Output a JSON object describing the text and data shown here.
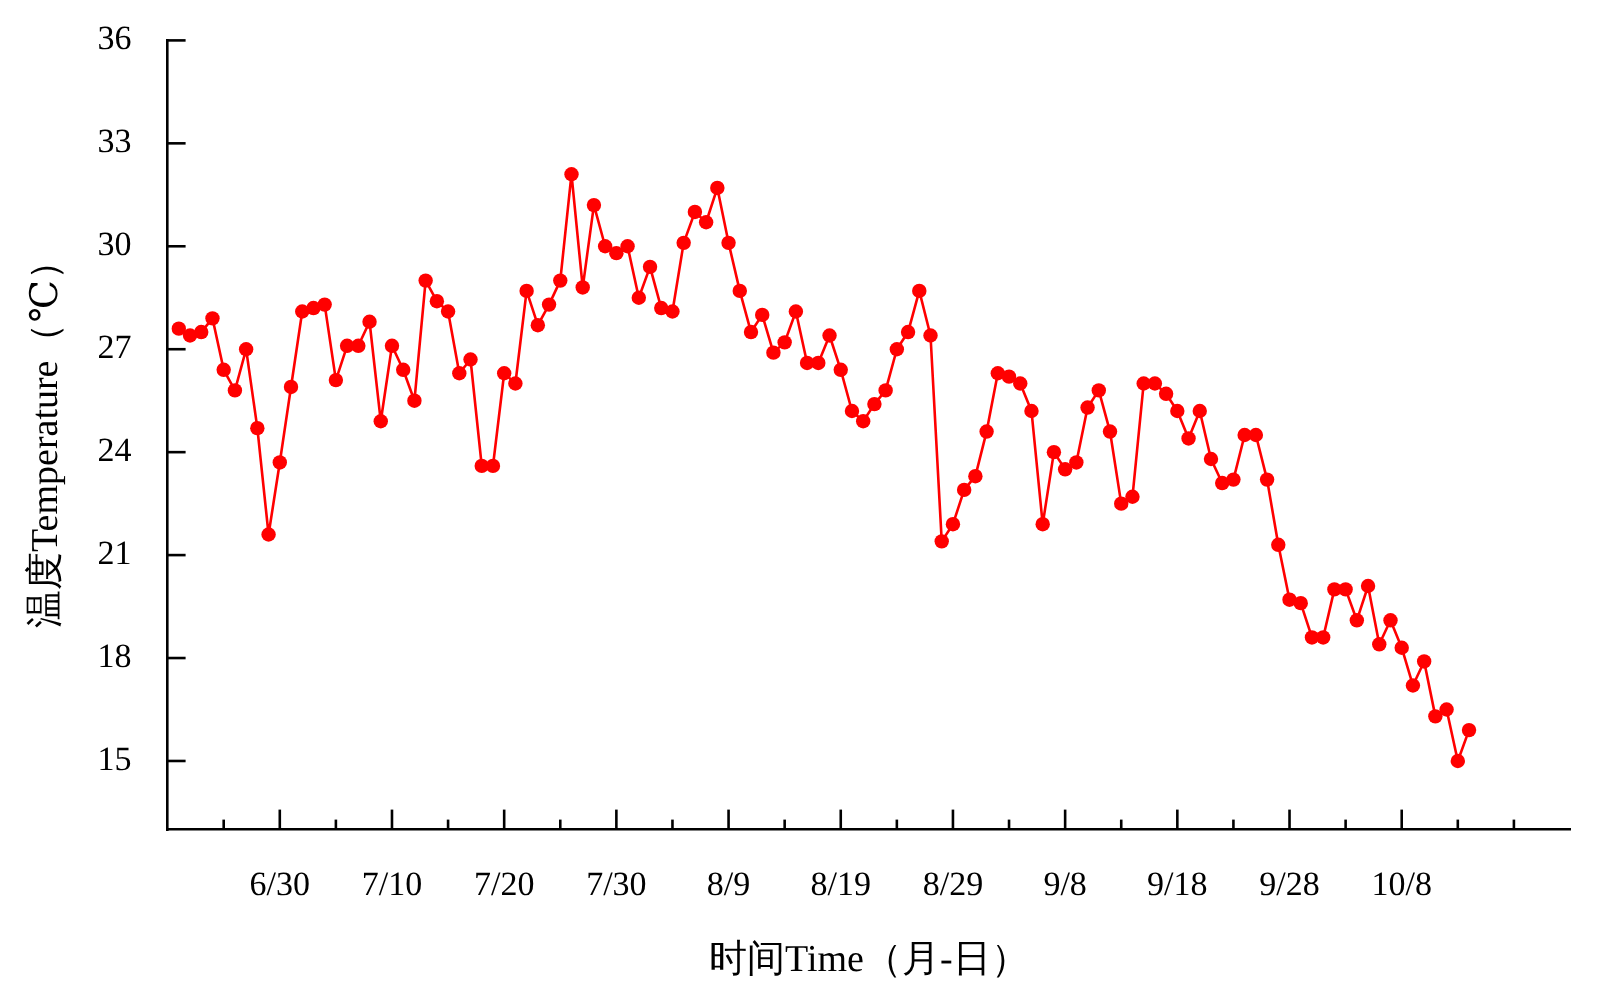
{
  "chart_data": {
    "type": "line",
    "xlabel": "时间Time（月-日）",
    "ylabel": "温度Temperature（℃）",
    "x": [
      "--06-21",
      "--06-22",
      "--06-23",
      "--06-24",
      "--06-25",
      "--06-26",
      "--06-27",
      "--06-28",
      "--06-29",
      "--06-30",
      "--07-01",
      "--07-02",
      "--07-03",
      "--07-04",
      "--07-05",
      "--07-06",
      "--07-07",
      "--07-08",
      "--07-09",
      "--07-10",
      "--07-11",
      "--07-12",
      "--07-13",
      "--07-14",
      "--07-15",
      "--07-16",
      "--07-17",
      "--07-18",
      "--07-19",
      "--07-20",
      "--07-21",
      "--07-22",
      "--07-23",
      "--07-24",
      "--07-25",
      "--07-26",
      "--07-27",
      "--07-28",
      "--07-29",
      "--07-30",
      "--07-31",
      "--08-01",
      "--08-02",
      "--08-03",
      "--08-04",
      "--08-05",
      "--08-06",
      "--08-07",
      "--08-08",
      "--08-09",
      "--08-10",
      "--08-11",
      "--08-12",
      "--08-13",
      "--08-14",
      "--08-15",
      "--08-16",
      "--08-17",
      "--08-18",
      "--08-19",
      "--08-20",
      "--08-21",
      "--08-22",
      "--08-23",
      "--08-24",
      "--08-25",
      "--08-26",
      "--08-27",
      "--08-28",
      "--08-29",
      "--08-30",
      "--08-31",
      "--09-01",
      "--09-02",
      "--09-03",
      "--09-04",
      "--09-05",
      "--09-06",
      "--09-07",
      "--09-08",
      "--09-09",
      "--09-10",
      "--09-11",
      "--09-12",
      "--09-13",
      "--09-14",
      "--09-15",
      "--09-16",
      "--09-17",
      "--09-18",
      "--09-19",
      "--09-20",
      "--09-21",
      "--09-22",
      "--09-23",
      "--09-24",
      "--09-25",
      "--09-26",
      "--09-27",
      "--09-28",
      "--09-29",
      "--09-30",
      "--10-01",
      "--10-02",
      "--10-03",
      "--10-04",
      "--10-05",
      "--10-06",
      "--10-07",
      "--10-08",
      "--10-09",
      "--10-10",
      "--10-11",
      "--10-12",
      "--10-13",
      "--10-14"
    ],
    "series": [
      {
        "color": "#ff0000",
        "values": [
          27.6,
          27.4,
          27.5,
          27.9,
          26.4,
          25.8,
          27.0,
          24.7,
          21.6,
          23.7,
          25.9,
          28.1,
          28.2,
          28.3,
          26.1,
          27.1,
          27.1,
          27.8,
          24.9,
          27.1,
          26.4,
          25.5,
          29.0,
          28.4,
          28.1,
          26.3,
          26.7,
          23.6,
          23.6,
          26.3,
          26.0,
          28.7,
          27.7,
          28.3,
          29.0,
          32.1,
          28.8,
          31.2,
          30.0,
          29.8,
          30.0,
          28.5,
          29.4,
          28.2,
          28.1,
          30.1,
          31.0,
          30.7,
          31.7,
          30.1,
          28.7,
          27.5,
          28.0,
          26.9,
          27.2,
          28.1,
          26.6,
          26.6,
          27.4,
          26.4,
          25.2,
          24.9,
          25.4,
          25.8,
          27.0,
          27.5,
          28.7,
          27.4,
          21.4,
          21.9,
          22.9,
          23.3,
          24.6,
          26.3,
          26.2,
          26.0,
          25.2,
          21.9,
          24.0,
          23.5,
          23.7,
          25.3,
          25.8,
          24.6,
          22.5,
          22.7,
          26.0,
          26.0,
          25.7,
          25.2,
          24.4,
          25.2,
          23.8,
          23.1,
          23.2,
          24.5,
          24.5,
          23.2,
          21.3,
          19.7,
          19.6,
          18.6,
          18.6,
          20.0,
          20.0,
          19.1,
          20.1,
          18.4,
          19.1,
          18.3,
          17.2,
          17.9,
          16.3,
          16.5,
          15.0,
          15.9
        ]
      }
    ],
    "xlim": [
      "--06-20",
      "--10-23"
    ],
    "xticks": [
      {
        "value": "--06-25",
        "label": null
      },
      {
        "value": "--06-30",
        "label": "6/30"
      },
      {
        "value": "--07-05",
        "label": null
      },
      {
        "value": "--07-10",
        "label": "7/10"
      },
      {
        "value": "--07-15",
        "label": null
      },
      {
        "value": "--07-20",
        "label": "7/20"
      },
      {
        "value": "--07-25",
        "label": null
      },
      {
        "value": "--07-30",
        "label": "7/30"
      },
      {
        "value": "--08-04",
        "label": null
      },
      {
        "value": "--08-09",
        "label": "8/9"
      },
      {
        "value": "--08-14",
        "label": null
      },
      {
        "value": "--08-19",
        "label": "8/19"
      },
      {
        "value": "--08-24",
        "label": null
      },
      {
        "value": "--08-29",
        "label": "8/29"
      },
      {
        "value": "--09-03",
        "label": null
      },
      {
        "value": "--09-08",
        "label": "9/8"
      },
      {
        "value": "--09-13",
        "label": null
      },
      {
        "value": "--09-18",
        "label": "9/18"
      },
      {
        "value": "--09-23",
        "label": null
      },
      {
        "value": "--09-28",
        "label": "9/28"
      },
      {
        "value": "--10-03",
        "label": null
      },
      {
        "value": "--10-08",
        "label": "10/8"
      },
      {
        "value": "--10-13",
        "label": null
      },
      {
        "value": "--10-18",
        "label": null
      }
    ],
    "ylim": [
      13,
      36
    ],
    "yticks": [
      15,
      18,
      21,
      24,
      27,
      30,
      33,
      36
    ],
    "marker": "circle",
    "line_style": "solid",
    "legend": false
  }
}
